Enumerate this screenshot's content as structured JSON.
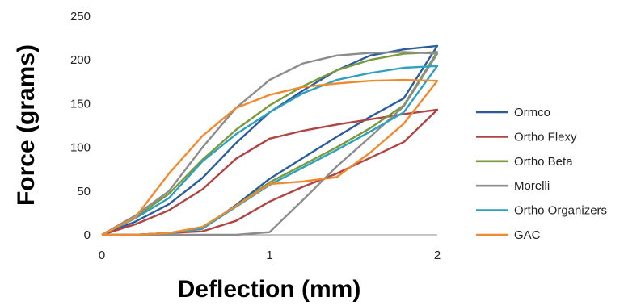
{
  "chart_data": {
    "type": "line",
    "title": "",
    "xlabel": "Deflection (mm)",
    "ylabel": "Force (grams)",
    "xlim": [
      0,
      2
    ],
    "ylim": [
      0,
      250
    ],
    "x_ticks": [
      "0",
      "1",
      "2"
    ],
    "y_ticks": [
      "0",
      "50",
      "100",
      "150",
      "200",
      "250"
    ],
    "grid": false,
    "legend_position": "right",
    "series": [
      {
        "name": "Ormco",
        "color": "#2b5d9e",
        "x": [
          0,
          0.2,
          0.4,
          0.6,
          0.8,
          1.0,
          1.2,
          1.4,
          1.6,
          1.8,
          2.0,
          1.8,
          1.6,
          1.4,
          1.2,
          1.0,
          0.8,
          0.6,
          0.4,
          0.2,
          0
        ],
        "y": [
          0,
          15,
          35,
          65,
          105,
          140,
          165,
          188,
          205,
          212,
          216,
          156,
          135,
          112,
          88,
          64,
          34,
          7,
          2,
          0,
          0
        ]
      },
      {
        "name": "Ortho Flexy",
        "color": "#b04442",
        "x": [
          0,
          0.2,
          0.4,
          0.6,
          0.8,
          1.0,
          1.2,
          1.4,
          1.6,
          1.8,
          2.0,
          1.8,
          1.6,
          1.4,
          1.2,
          1.0,
          0.8,
          0.6,
          0.4,
          0.2,
          0
        ],
        "y": [
          0,
          12,
          28,
          52,
          87,
          110,
          119,
          126,
          132,
          138,
          143,
          106,
          88,
          70,
          55,
          38,
          16,
          4,
          2,
          0,
          0
        ]
      },
      {
        "name": "Ortho Beta",
        "color": "#7a9a3c",
        "x": [
          0,
          0.2,
          0.4,
          0.6,
          0.8,
          1.0,
          1.2,
          1.4,
          1.6,
          1.8,
          2.0,
          1.8,
          1.6,
          1.4,
          1.2,
          1.0,
          0.8,
          0.6,
          0.4,
          0.2,
          0
        ],
        "y": [
          0,
          20,
          47,
          86,
          120,
          148,
          170,
          188,
          200,
          207,
          209,
          148,
          122,
          100,
          80,
          60,
          33,
          7,
          2,
          0,
          0
        ]
      },
      {
        "name": "Morelli",
        "color": "#8c8c8c",
        "x": [
          0,
          0.2,
          0.4,
          0.6,
          0.8,
          1.0,
          1.2,
          1.4,
          1.6,
          1.8,
          2.0,
          1.8,
          1.6,
          1.4,
          1.2,
          1.0,
          0.8,
          0.6,
          0.4,
          0.2,
          0
        ],
        "y": [
          0,
          22,
          50,
          100,
          145,
          177,
          196,
          205,
          208,
          209,
          207,
          147,
          112,
          78,
          40,
          3,
          0,
          0,
          0,
          0,
          0
        ]
      },
      {
        "name": "Ortho Organizers",
        "color": "#2fa0be",
        "x": [
          0,
          0.2,
          0.4,
          0.6,
          0.8,
          1.0,
          1.2,
          1.4,
          1.6,
          1.8,
          2.0,
          1.8,
          1.6,
          1.4,
          1.2,
          1.0,
          0.8,
          0.6,
          0.4,
          0.2,
          0
        ],
        "y": [
          0,
          19,
          42,
          84,
          115,
          140,
          162,
          177,
          185,
          191,
          193,
          140,
          118,
          97,
          77,
          57,
          32,
          7,
          2,
          0,
          0
        ]
      },
      {
        "name": "GAC",
        "color": "#f08a30",
        "x": [
          0,
          0.2,
          0.4,
          0.6,
          0.8,
          1.0,
          1.2,
          1.4,
          1.6,
          1.8,
          2.0,
          1.8,
          1.6,
          1.4,
          1.2,
          1.0,
          0.8,
          0.6,
          0.4,
          0.2,
          0
        ],
        "y": [
          0,
          20,
          70,
          113,
          145,
          160,
          169,
          173,
          176,
          177,
          176,
          127,
          94,
          66,
          61,
          58,
          33,
          9,
          2,
          0,
          0
        ]
      }
    ]
  }
}
